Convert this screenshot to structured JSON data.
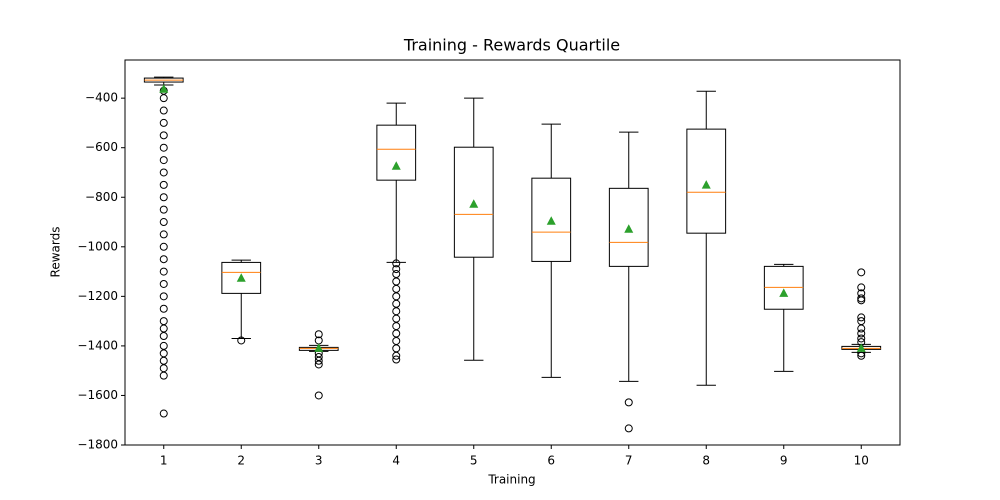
{
  "chart_data": {
    "type": "box",
    "title": "Training - Rewards Quartile",
    "x_label": "Training",
    "y_label": "Rewards",
    "categories": [
      "1",
      "2",
      "3",
      "4",
      "5",
      "6",
      "7",
      "8",
      "9",
      "10"
    ],
    "box_color": "#000000",
    "median_color": "#ff7f0e",
    "mean_color": "#2ca02c",
    "ylim": [
      -1800,
      -246
    ],
    "yticks": [
      {
        "value": -1800,
        "label": "−1800"
      },
      {
        "value": -1600,
        "label": "−1600"
      },
      {
        "value": -1400,
        "label": "−1400"
      },
      {
        "value": -1200,
        "label": "−1200"
      },
      {
        "value": -1000,
        "label": "−1000"
      },
      {
        "value": -800,
        "label": "−800"
      },
      {
        "value": -600,
        "label": "−600"
      },
      {
        "value": -400,
        "label": "−400"
      }
    ],
    "boxes": [
      {
        "whislo": -347,
        "q1": -335,
        "med": -327,
        "q3": -319,
        "whishi": -315,
        "mean": -364,
        "fliers": [
          -370,
          -400,
          -450,
          -500,
          -550,
          -600,
          -650,
          -700,
          -750,
          -800,
          -850,
          -900,
          -950,
          -1000,
          -1050,
          -1100,
          -1150,
          -1200,
          -1250,
          -1300,
          -1330,
          -1360,
          -1400,
          -1430,
          -1460,
          -1490,
          -1520,
          -1673
        ]
      },
      {
        "whislo": -1370,
        "q1": -1188,
        "med": -1103,
        "q3": -1063,
        "whishi": -1054,
        "mean": -1127,
        "fliers": [
          -1378
        ]
      },
      {
        "whislo": -1422,
        "q1": -1418,
        "med": -1410,
        "q3": -1406,
        "whishi": -1398,
        "mean": -1410,
        "fliers": [
          -1353,
          -1378,
          -1430,
          -1445,
          -1460,
          -1475,
          -1600
        ]
      },
      {
        "whislo": -1063,
        "q1": -731,
        "med": -606,
        "q3": -509,
        "whishi": -420,
        "mean": -675,
        "fliers": [
          -1067,
          -1090,
          -1110,
          -1140,
          -1170,
          -1200,
          -1230,
          -1260,
          -1290,
          -1320,
          -1350,
          -1380,
          -1410,
          -1440,
          -1455
        ]
      },
      {
        "whislo": -1458,
        "q1": -1042,
        "med": -869,
        "q3": -598,
        "whishi": -400,
        "mean": -828,
        "fliers": []
      },
      {
        "whislo": -1527,
        "q1": -1059,
        "med": -941,
        "q3": -723,
        "whishi": -505,
        "mean": -897,
        "fliers": []
      },
      {
        "whislo": -1543,
        "q1": -1079,
        "med": -982,
        "q3": -764,
        "whishi": -537,
        "mean": -929,
        "fliers": [
          -1628,
          -1733
        ]
      },
      {
        "whislo": -1559,
        "q1": -945,
        "med": -780,
        "q3": -525,
        "whishi": -372,
        "mean": -751,
        "fliers": []
      },
      {
        "whislo": -1503,
        "q1": -1252,
        "med": -1164,
        "q3": -1079,
        "whishi": -1071,
        "mean": -1188,
        "fliers": []
      },
      {
        "whislo": -1426,
        "q1": -1414,
        "med": -1410,
        "q3": -1402,
        "whishi": -1394,
        "mean": -1410,
        "fliers": [
          -1103,
          -1164,
          -1188,
          -1208,
          -1216,
          -1285,
          -1300,
          -1330,
          -1350,
          -1370,
          -1385,
          -1430,
          -1440
        ]
      }
    ]
  }
}
